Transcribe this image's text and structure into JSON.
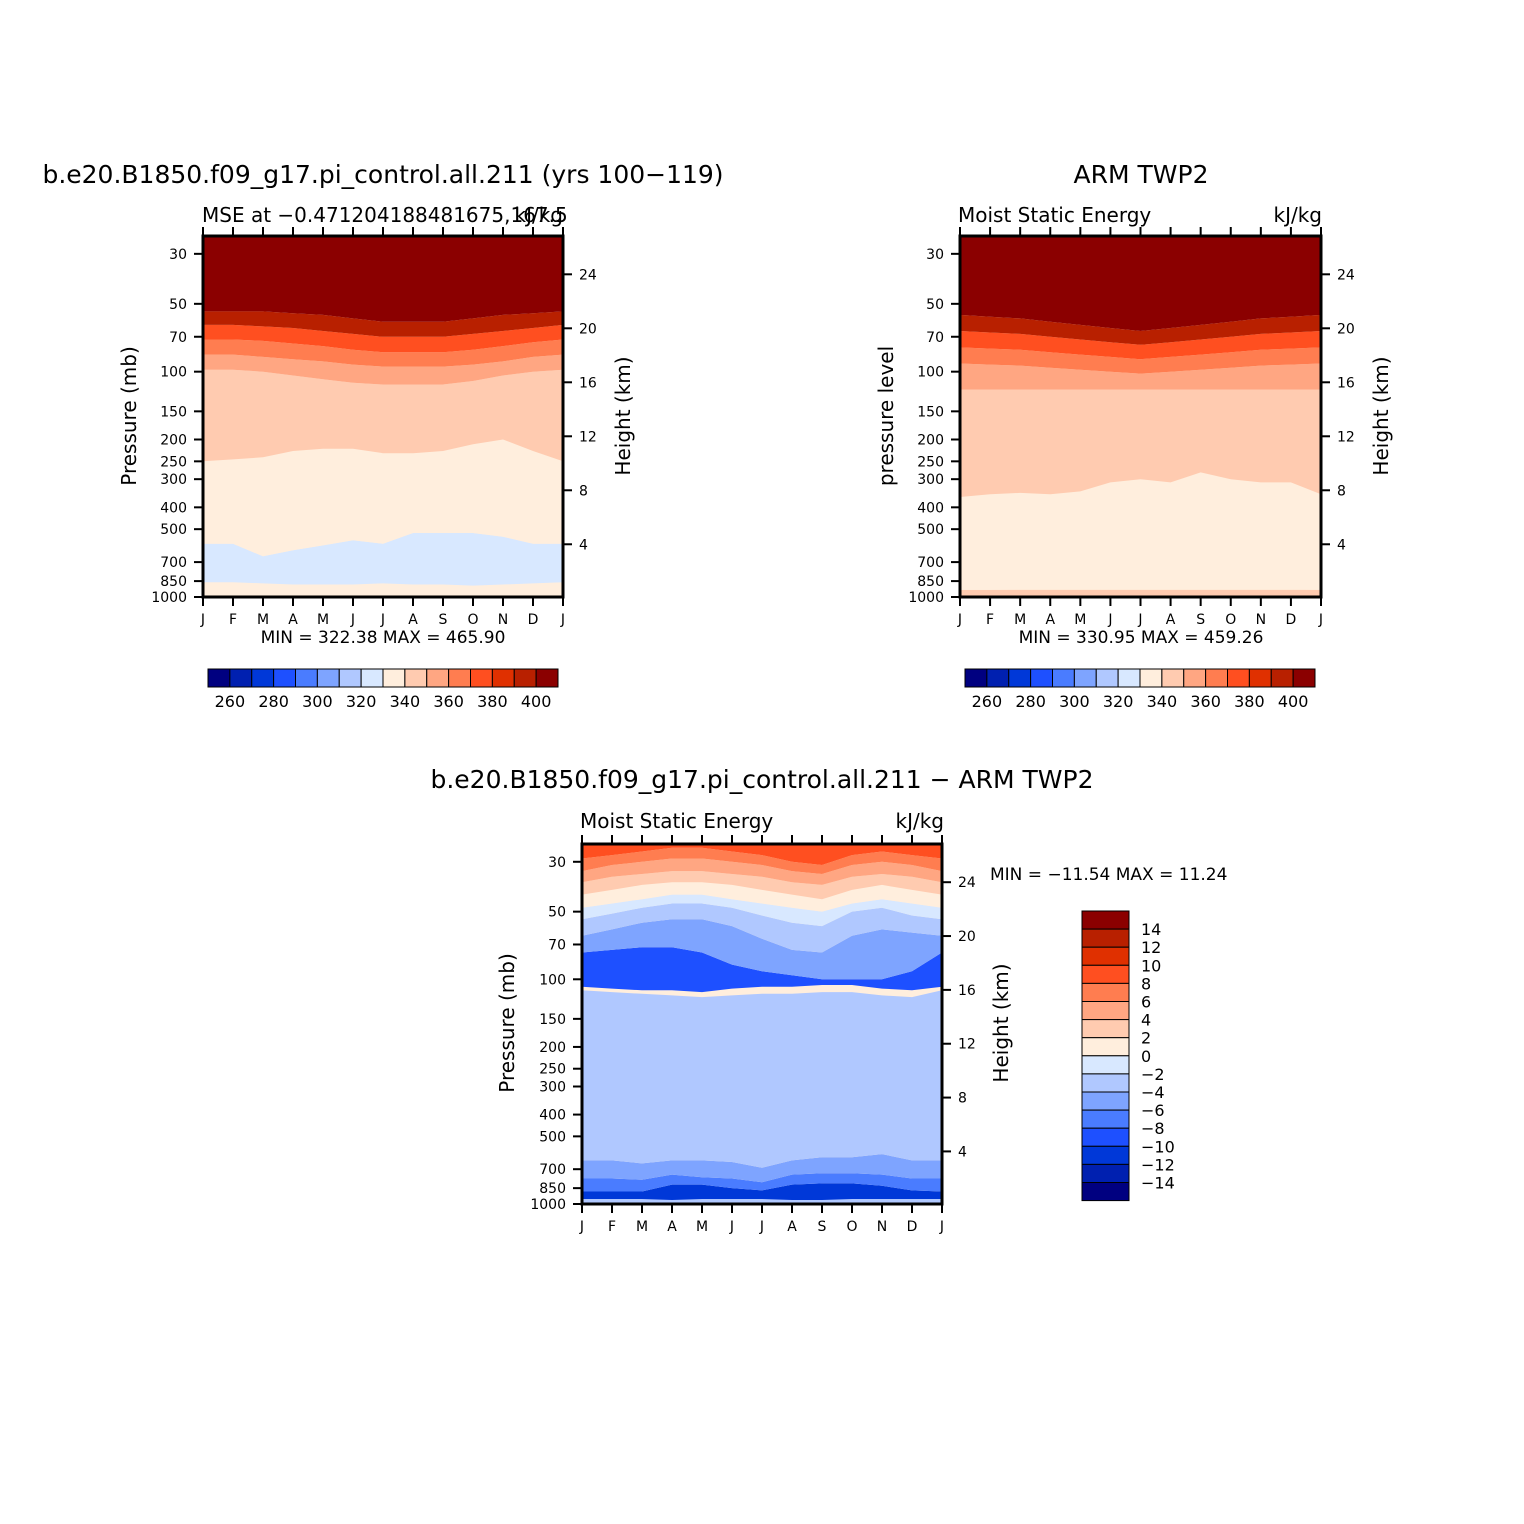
{
  "months": [
    "J",
    "F",
    "M",
    "A",
    "M",
    "J",
    "J",
    "A",
    "S",
    "O",
    "N",
    "D",
    "J"
  ],
  "pressure_ticks": [
    30,
    50,
    70,
    100,
    150,
    200,
    250,
    300,
    400,
    500,
    700,
    850,
    1000
  ],
  "height_ticks": [
    4,
    8,
    12,
    16,
    20,
    24
  ],
  "colors": {
    "abs": [
      "#000080",
      "#0020b0",
      "#0038d8",
      "#1e50ff",
      "#4a7cff",
      "#7ea4ff",
      "#b0c8ff",
      "#d8e8ff",
      "#ffeedd",
      "#ffcbb0",
      "#ffa682",
      "#ff7d50",
      "#ff4f20",
      "#e03000",
      "#b82000",
      "#8b0000"
    ],
    "diff": [
      "#000080",
      "#0020b0",
      "#0038d8",
      "#1e50ff",
      "#4a7cff",
      "#7ea4ff",
      "#b0c8ff",
      "#d8e8ff",
      "#ffeedd",
      "#ffcbb0",
      "#ffa682",
      "#ff7d50",
      "#ff4f20",
      "#e03000",
      "#b82000",
      "#8b0000"
    ]
  },
  "panels": [
    {
      "title": "b.e20.B1850.f09_g17.pi_control.all.211 (yrs 100−119)",
      "left_subtitle": "MSE at −0.471204188481675,167.5",
      "right_subtitle": "kJ/kg",
      "y_label": "Pressure (mb)",
      "y2_label": "Height (km)",
      "stats": "MIN = 322.38 MAX = 465.90",
      "colorbar_labels": [
        "260",
        "280",
        "300",
        "320",
        "340",
        "360",
        "380",
        "400"
      ]
    },
    {
      "title": "ARM TWP2",
      "left_subtitle": "Moist Static Energy",
      "right_subtitle": "kJ/kg",
      "y_label": "pressure level",
      "y2_label": "Height (km)",
      "stats": "MIN = 330.95 MAX = 459.26",
      "colorbar_labels": [
        "260",
        "280",
        "300",
        "320",
        "340",
        "360",
        "380",
        "400"
      ]
    },
    {
      "title": "b.e20.B1850.f09_g17.pi_control.all.211 − ARM TWP2",
      "left_subtitle": "Moist Static Energy",
      "right_subtitle": "kJ/kg",
      "y_label": "Pressure (mb)",
      "y2_label": "Height (km)",
      "stats": "MIN = −11.54 MAX = 11.24",
      "colorbar_labels": [
        "14",
        "12",
        "10",
        "8",
        "6",
        "4",
        "2",
        "0",
        "−2",
        "−4",
        "−6",
        "−8",
        "−10",
        "−12",
        "−14"
      ]
    }
  ],
  "chart_data": [
    {
      "type": "heatmap",
      "title": "b.e20.B1850.f09_g17.pi_control.all.211 (yrs 100−119)",
      "ylabel": "Pressure (mb)",
      "ylabel2": "Height (km)",
      "x": [
        "J",
        "F",
        "M",
        "A",
        "M",
        "J",
        "J",
        "A",
        "S",
        "O",
        "N",
        "D",
        "J"
      ],
      "units": "kJ/kg",
      "contour_levels": [
        260,
        270,
        280,
        290,
        300,
        310,
        320,
        330,
        340,
        350,
        360,
        370,
        380,
        390,
        400
      ],
      "bands": [
        {
          "color_index": 8,
          "top_p": 850,
          "bottom_p": 1000
        },
        {
          "color_index": 7,
          "top_p": [
            580,
            580,
            660,
            620,
            590,
            560,
            580,
            520,
            520,
            520,
            540,
            580,
            580
          ],
          "bottom_p": [
            860,
            860,
            870,
            880,
            880,
            880,
            870,
            880,
            880,
            890,
            880,
            870,
            860
          ]
        },
        {
          "color_index": 8,
          "top_p": [
            250,
            245,
            240,
            225,
            220,
            220,
            230,
            230,
            225,
            210,
            200,
            225,
            250
          ],
          "bottom_p": [
            580,
            580,
            660,
            620,
            590,
            560,
            580,
            520,
            520,
            520,
            540,
            580,
            580
          ]
        },
        {
          "color_index": 9,
          "top_p": [
            98,
            98,
            100,
            104,
            108,
            112,
            114,
            114,
            114,
            110,
            104,
            100,
            98
          ],
          "bottom_p": [
            250,
            245,
            240,
            225,
            220,
            220,
            230,
            230,
            225,
            210,
            200,
            225,
            250
          ]
        },
        {
          "color_index": 10,
          "top_p": [
            84,
            84,
            86,
            88,
            90,
            93,
            95,
            95,
            95,
            93,
            90,
            86,
            84
          ],
          "bottom_p": [
            98,
            98,
            100,
            104,
            108,
            112,
            114,
            114,
            114,
            110,
            104,
            100,
            98
          ]
        },
        {
          "color_index": 11,
          "top_p": [
            72,
            72,
            73,
            75,
            77,
            80,
            82,
            82,
            82,
            80,
            77,
            74,
            72
          ],
          "bottom_p": [
            84,
            84,
            86,
            88,
            90,
            93,
            95,
            95,
            95,
            93,
            90,
            86,
            84
          ]
        },
        {
          "color_index": 12,
          "top_p": [
            62,
            62,
            63,
            64,
            66,
            68,
            70,
            70,
            70,
            68,
            66,
            64,
            62
          ],
          "bottom_p": [
            72,
            72,
            73,
            75,
            77,
            80,
            82,
            82,
            82,
            80,
            77,
            74,
            72
          ]
        },
        {
          "color_index": 14,
          "top_p": [
            54,
            54,
            54,
            55,
            56,
            58,
            60,
            60,
            60,
            58,
            56,
            55,
            54
          ],
          "bottom_p": [
            62,
            62,
            63,
            64,
            66,
            68,
            70,
            70,
            70,
            68,
            66,
            64,
            62
          ]
        },
        {
          "color_index": 15,
          "top_p": 20,
          "bottom_p": [
            54,
            54,
            54,
            55,
            56,
            58,
            60,
            60,
            60,
            58,
            56,
            55,
            54
          ]
        }
      ]
    },
    {
      "type": "heatmap",
      "title": "ARM TWP2",
      "ylabel": "pressure level",
      "ylabel2": "Height (km)",
      "x": [
        "J",
        "F",
        "M",
        "A",
        "M",
        "J",
        "J",
        "A",
        "S",
        "O",
        "N",
        "D",
        "J"
      ],
      "units": "kJ/kg",
      "contour_levels": [
        260,
        270,
        280,
        290,
        300,
        310,
        320,
        330,
        340,
        350,
        360,
        370,
        380,
        390,
        400
      ],
      "bands": [
        {
          "color_index": 9,
          "top_p": 930,
          "bottom_p": 1000
        },
        {
          "color_index": 8,
          "top_p": [
            360,
            350,
            345,
            350,
            340,
            310,
            300,
            310,
            280,
            300,
            310,
            310,
            350
          ],
          "bottom_p": [
            930,
            930,
            925,
            920,
            920,
            925,
            925,
            925,
            925,
            925,
            925,
            925,
            930
          ]
        },
        {
          "color_index": 9,
          "top_p": 120,
          "bottom_p": [
            360,
            350,
            345,
            350,
            340,
            310,
            300,
            310,
            280,
            300,
            310,
            310,
            350
          ]
        },
        {
          "color_index": 10,
          "top_p": [
            92,
            93,
            94,
            96,
            98,
            100,
            102,
            100,
            98,
            96,
            94,
            93,
            92
          ],
          "bottom_p": 120
        },
        {
          "color_index": 11,
          "top_p": [
            78,
            79,
            80,
            82,
            84,
            86,
            88,
            86,
            84,
            82,
            80,
            79,
            78
          ],
          "bottom_p": [
            92,
            93,
            94,
            96,
            98,
            100,
            102,
            100,
            98,
            96,
            94,
            93,
            92
          ]
        },
        {
          "color_index": 12,
          "top_p": [
            66,
            67,
            68,
            70,
            72,
            74,
            76,
            74,
            72,
            70,
            68,
            67,
            66
          ],
          "bottom_p": [
            78,
            79,
            80,
            82,
            84,
            86,
            88,
            86,
            84,
            82,
            80,
            79,
            78
          ]
        },
        {
          "color_index": 14,
          "top_p": [
            56,
            57,
            58,
            60,
            62,
            64,
            66,
            64,
            62,
            60,
            58,
            57,
            56
          ],
          "bottom_p": [
            66,
            67,
            68,
            70,
            72,
            74,
            76,
            74,
            72,
            70,
            68,
            67,
            66
          ]
        },
        {
          "color_index": 15,
          "top_p": 20,
          "bottom_p": [
            56,
            57,
            58,
            60,
            62,
            64,
            66,
            64,
            62,
            60,
            58,
            57,
            56
          ]
        }
      ]
    },
    {
      "type": "heatmap",
      "title": "b.e20.B1850.f09_g17.pi_control.all.211 − ARM TWP2",
      "ylabel": "Pressure (mb)",
      "ylabel2": "Height (km)",
      "x": [
        "J",
        "F",
        "M",
        "A",
        "M",
        "J",
        "J",
        "A",
        "S",
        "O",
        "N",
        "D",
        "J"
      ],
      "units": "kJ/kg",
      "contour_levels": [
        -14,
        -12,
        -10,
        -8,
        -6,
        -4,
        -2,
        0,
        2,
        4,
        6,
        8,
        10,
        12,
        14
      ],
      "bands": [
        {
          "color_index": 6,
          "top_p": 950,
          "bottom_p": 1000
        },
        {
          "color_index": 2,
          "top_p": [
            880,
            880,
            880,
            820,
            820,
            850,
            870,
            820,
            810,
            810,
            830,
            870,
            880
          ],
          "bottom_p": [
            950,
            950,
            950,
            960,
            950,
            950,
            950,
            960,
            960,
            950,
            950,
            950,
            950
          ]
        },
        {
          "color_index": 4,
          "top_p": [
            770,
            770,
            780,
            740,
            760,
            770,
            800,
            740,
            730,
            730,
            740,
            770,
            770
          ],
          "bottom_p": [
            880,
            880,
            880,
            820,
            820,
            850,
            870,
            820,
            810,
            810,
            830,
            870,
            880
          ]
        },
        {
          "color_index": 5,
          "top_p": [
            640,
            640,
            660,
            640,
            640,
            650,
            690,
            640,
            620,
            620,
            600,
            640,
            640
          ],
          "bottom_p": [
            770,
            770,
            780,
            740,
            760,
            770,
            800,
            740,
            730,
            730,
            740,
            770,
            770
          ]
        },
        {
          "color_index": 6,
          "top_p": [
            112,
            114,
            116,
            118,
            120,
            118,
            116,
            116,
            114,
            114,
            118,
            120,
            112
          ],
          "bottom_p": [
            640,
            640,
            660,
            640,
            640,
            650,
            690,
            640,
            620,
            620,
            600,
            640,
            640
          ]
        },
        {
          "color_index": 3,
          "top_p": [
            76,
            74,
            72,
            72,
            76,
            86,
            92,
            96,
            100,
            100,
            100,
            92,
            76
          ],
          "bottom_p": [
            108,
            110,
            112,
            112,
            114,
            110,
            108,
            108,
            106,
            106,
            110,
            112,
            108
          ]
        },
        {
          "color_index": 5,
          "top_p": [
            64,
            60,
            56,
            54,
            54,
            58,
            66,
            74,
            76,
            64,
            60,
            62,
            64
          ],
          "bottom_p": [
            76,
            74,
            72,
            72,
            76,
            86,
            92,
            96,
            100,
            100,
            100,
            92,
            76
          ]
        },
        {
          "color_index": 6,
          "top_p": [
            54,
            51,
            48,
            46,
            46,
            48,
            52,
            56,
            58,
            50,
            48,
            52,
            54
          ],
          "bottom_p": [
            64,
            60,
            56,
            54,
            54,
            58,
            66,
            74,
            76,
            64,
            60,
            62,
            64
          ]
        },
        {
          "color_index": 7,
          "top_p": [
            48,
            46,
            44,
            42,
            42,
            44,
            46,
            48,
            50,
            46,
            44,
            46,
            48
          ],
          "bottom_p": [
            54,
            51,
            48,
            46,
            46,
            48,
            52,
            56,
            58,
            50,
            48,
            52,
            54
          ]
        },
        {
          "color_index": 8,
          "top_p": [
            42,
            40,
            38,
            37,
            37,
            38,
            40,
            42,
            44,
            40,
            38,
            40,
            42
          ],
          "bottom_p": [
            48,
            46,
            44,
            42,
            42,
            44,
            46,
            48,
            50,
            46,
            44,
            46,
            48
          ]
        },
        {
          "color_index": 9,
          "top_p": [
            37,
            35,
            34,
            33,
            33,
            34,
            35,
            37,
            38,
            35,
            34,
            35,
            37
          ],
          "bottom_p": [
            42,
            40,
            38,
            37,
            37,
            38,
            40,
            42,
            44,
            40,
            38,
            40,
            42
          ]
        },
        {
          "color_index": 10,
          "top_p": [
            33,
            31,
            30,
            29,
            29,
            30,
            31,
            33,
            34,
            31,
            30,
            31,
            33
          ],
          "bottom_p": [
            37,
            35,
            34,
            33,
            33,
            34,
            35,
            37,
            38,
            35,
            34,
            35,
            37
          ]
        },
        {
          "color_index": 11,
          "top_p": [
            29,
            28,
            27,
            26,
            26,
            27,
            28,
            30,
            31,
            28,
            27,
            28,
            29
          ],
          "bottom_p": [
            33,
            31,
            30,
            29,
            29,
            30,
            31,
            33,
            34,
            31,
            30,
            31,
            33
          ]
        },
        {
          "color_index": 12,
          "top_p": 25,
          "bottom_p": [
            29,
            28,
            27,
            26,
            26,
            27,
            28,
            30,
            31,
            28,
            27,
            28,
            29
          ]
        }
      ]
    }
  ]
}
